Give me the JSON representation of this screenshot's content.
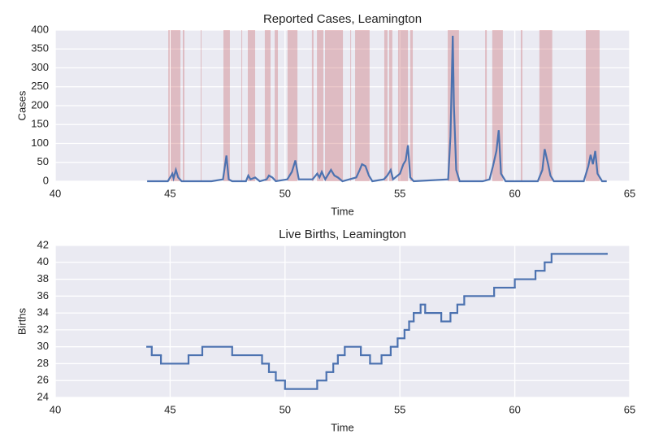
{
  "chart_data": [
    {
      "type": "line",
      "title": "Reported Cases, Leamington",
      "xlabel": "Time",
      "ylabel": "Cases",
      "xlim": [
        40,
        65
      ],
      "xticks": [
        40,
        45,
        50,
        55,
        60,
        65
      ],
      "ylim": [
        0,
        400
      ],
      "yticks": [
        0,
        50,
        100,
        150,
        200,
        250,
        300,
        350,
        400
      ],
      "grid": true,
      "span_color": "#c44e52",
      "spans": [
        [
          44.92,
          44.99
        ],
        [
          45.02,
          45.45
        ],
        [
          45.55,
          45.62
        ],
        [
          46.33,
          46.36
        ],
        [
          47.32,
          47.6
        ],
        [
          48.1,
          48.13
        ],
        [
          48.38,
          48.7
        ],
        [
          49.12,
          49.37
        ],
        [
          49.55,
          49.69
        ],
        [
          50.11,
          50.54
        ],
        [
          51.17,
          51.24
        ],
        [
          51.39,
          51.67
        ],
        [
          51.74,
          52.52
        ],
        [
          52.84,
          52.87
        ],
        [
          53.05,
          53.68
        ],
        [
          54.32,
          54.46
        ],
        [
          54.53,
          54.67
        ],
        [
          54.92,
          55.35
        ],
        [
          55.45,
          55.56
        ],
        [
          57.08,
          57.57
        ],
        [
          58.71,
          58.78
        ],
        [
          59.02,
          59.48
        ],
        [
          60.26,
          60.33
        ],
        [
          61.07,
          61.63
        ],
        [
          63.09,
          63.69
        ]
      ],
      "x": [
        44,
        44.9,
        45.0,
        45.1,
        45.15,
        45.25,
        45.35,
        45.5,
        46.8,
        47.3,
        47.45,
        47.55,
        47.7,
        48.3,
        48.4,
        48.5,
        48.7,
        48.9,
        49.2,
        49.3,
        49.45,
        49.6,
        50.1,
        50.3,
        50.45,
        50.6,
        51.2,
        51.4,
        51.5,
        51.6,
        51.75,
        51.9,
        52.0,
        52.15,
        52.3,
        52.5,
        53.1,
        53.25,
        53.35,
        53.5,
        53.65,
        53.8,
        54.3,
        54.45,
        54.6,
        54.7,
        55.0,
        55.15,
        55.25,
        55.35,
        55.45,
        55.6,
        57.1,
        57.2,
        57.25,
        57.3,
        57.35,
        57.45,
        57.6,
        58.6,
        58.9,
        59.05,
        59.2,
        59.3,
        59.4,
        59.6,
        61.0,
        61.2,
        61.3,
        61.45,
        61.55,
        61.7,
        63.0,
        63.2,
        63.3,
        63.4,
        63.5,
        63.6,
        63.8,
        64
      ],
      "series": [
        {
          "name": "Cases",
          "color": "#4c72b0",
          "values": [
            0,
            0,
            10,
            20,
            8,
            30,
            10,
            0,
            0,
            5,
            68,
            5,
            0,
            0,
            15,
            5,
            10,
            0,
            5,
            15,
            10,
            0,
            5,
            25,
            55,
            5,
            5,
            20,
            10,
            25,
            5,
            20,
            30,
            15,
            10,
            0,
            10,
            30,
            45,
            40,
            15,
            0,
            5,
            15,
            30,
            5,
            20,
            45,
            55,
            95,
            10,
            0,
            5,
            120,
            250,
            385,
            200,
            30,
            0,
            0,
            5,
            40,
            80,
            135,
            20,
            0,
            0,
            30,
            85,
            45,
            15,
            0,
            0,
            40,
            70,
            45,
            80,
            20,
            0,
            0
          ]
        }
      ]
    },
    {
      "type": "step",
      "title": "Live Births, Leamington",
      "xlabel": "Time",
      "ylabel": "Births",
      "xlim": [
        40,
        65
      ],
      "xticks": [
        40,
        45,
        50,
        55,
        60,
        65
      ],
      "ylim": [
        24,
        42
      ],
      "yticks": [
        24,
        26,
        28,
        30,
        32,
        34,
        36,
        38,
        40,
        42
      ],
      "grid": true,
      "x": [
        44.0,
        44.2,
        44.6,
        45.8,
        46.4,
        47.7,
        49.0,
        49.3,
        49.6,
        50.0,
        51.4,
        51.8,
        52.1,
        52.3,
        52.6,
        53.3,
        53.7,
        54.2,
        54.6,
        54.9,
        55.2,
        55.4,
        55.6,
        55.9,
        56.1,
        56.8,
        57.2,
        57.5,
        57.8,
        59.1,
        60.0,
        60.9,
        61.3,
        61.6,
        64.0
      ],
      "series": [
        {
          "name": "Births",
          "color": "#4c72b0",
          "values": [
            30,
            29,
            28,
            29,
            30,
            29,
            28,
            27,
            26,
            25,
            26,
            27,
            28,
            29,
            30,
            29,
            28,
            29,
            30,
            31,
            32,
            33,
            34,
            35,
            34,
            33,
            34,
            35,
            36,
            37,
            38,
            39,
            40,
            41,
            41
          ]
        }
      ]
    }
  ]
}
